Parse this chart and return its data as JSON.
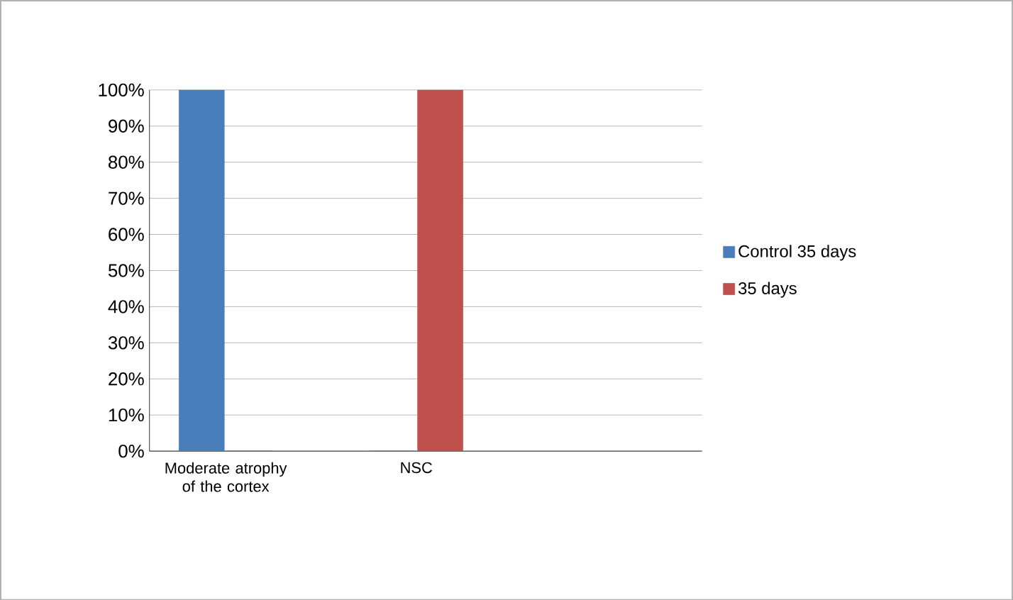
{
  "chart_data": {
    "type": "bar",
    "categories": [
      "Moderate atrophy of the cortex",
      "NSC"
    ],
    "series": [
      {
        "name": "Control 35 days",
        "color": "#4a7ebb",
        "values": [
          100,
          0
        ]
      },
      {
        "name": "35 days",
        "color": "#c0504d",
        "values": [
          0,
          100
        ]
      }
    ],
    "ylim": [
      0,
      100
    ],
    "yticks": [
      {
        "value": 0,
        "label": "0%"
      },
      {
        "value": 10,
        "label": "10%"
      },
      {
        "value": 20,
        "label": "20%"
      },
      {
        "value": 30,
        "label": "30%"
      },
      {
        "value": 40,
        "label": "40%"
      },
      {
        "value": 50,
        "label": "50%"
      },
      {
        "value": 60,
        "label": "60%"
      },
      {
        "value": 70,
        "label": "70%"
      },
      {
        "value": 80,
        "label": "80%"
      },
      {
        "value": 90,
        "label": "90%"
      },
      {
        "value": 100,
        "label": "100%"
      }
    ],
    "grid": "y",
    "legend": "right"
  }
}
